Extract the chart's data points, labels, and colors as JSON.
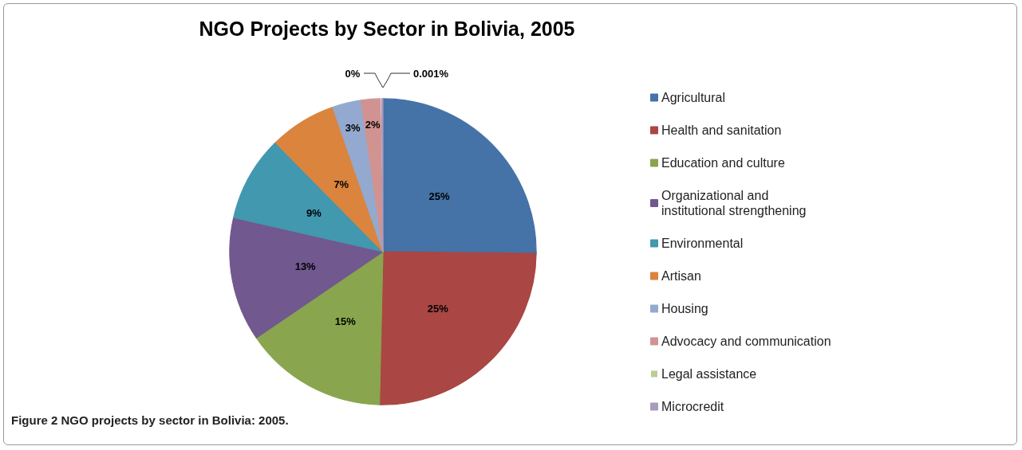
{
  "chart_data": {
    "type": "pie",
    "title": "NGO Projects by Sector in Bolivia, 2005",
    "categories": [
      "Agricultural",
      "Health and sanitation",
      "Education and culture",
      "Organizational and institutional strengthening",
      "Environmental",
      "Artisan",
      "Housing",
      "Advocacy and communication",
      "Legal assistance",
      "Microcredit"
    ],
    "values": [
      25,
      25,
      15,
      13,
      9,
      7,
      3,
      2,
      0,
      0.001
    ],
    "colors": [
      "#4572a7",
      "#aa4643",
      "#89a54e",
      "#71588f",
      "#4198af",
      "#db843d",
      "#93a9cf",
      "#d19392",
      "#b9cd96",
      "#a99bbd"
    ],
    "value_labels": [
      "25%",
      "25%",
      "15%",
      "13%",
      "9%",
      "7%",
      "3%",
      "2%",
      "0%",
      "0.001%"
    ],
    "legend": "right",
    "annotations": [
      "Figure 2 NGO projects by sector in Bolivia: 2005."
    ]
  }
}
